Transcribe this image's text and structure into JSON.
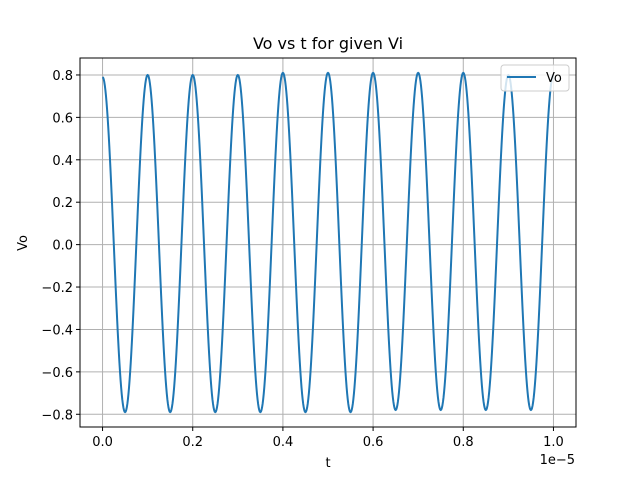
{
  "chart_data": {
    "type": "line",
    "title": "Vo vs t for given Vi",
    "xlabel": "t",
    "ylabel": "Vo",
    "x_offset_label": "1e−5",
    "x_scale": 1e-05,
    "xlim": [
      -0.05,
      1.05
    ],
    "ylim": [
      -0.86,
      0.88
    ],
    "x_ticks": [
      0.0,
      0.2,
      0.4,
      0.6,
      0.8,
      1.0
    ],
    "x_tick_labels": [
      "0.0",
      "0.2",
      "0.4",
      "0.6",
      "0.8",
      "1.0"
    ],
    "y_ticks": [
      -0.8,
      -0.6,
      -0.4,
      -0.2,
      0.0,
      0.2,
      0.4,
      0.6,
      0.8
    ],
    "y_tick_labels": [
      "−0.8",
      "−0.6",
      "−0.4",
      "−0.2",
      "0.0",
      "0.2",
      "0.4",
      "0.6",
      "0.8"
    ],
    "grid": true,
    "legend_position": "top-right",
    "color": "#1f77b4",
    "series": [
      {
        "name": "Vo",
        "x": [
          0.0,
          0.05,
          0.1,
          0.15,
          0.2,
          0.25,
          0.3,
          0.35,
          0.4,
          0.45,
          0.5,
          0.55,
          0.6,
          0.65,
          0.7,
          0.75,
          0.8,
          0.85,
          0.9,
          0.95,
          1.0
        ],
        "values": [
          0.79,
          -0.79,
          0.8,
          -0.79,
          0.8,
          -0.79,
          0.8,
          -0.79,
          0.81,
          -0.79,
          0.81,
          -0.79,
          0.81,
          -0.78,
          0.81,
          -0.78,
          0.81,
          -0.78,
          0.8,
          -0.78,
          0.8
        ]
      }
    ]
  }
}
